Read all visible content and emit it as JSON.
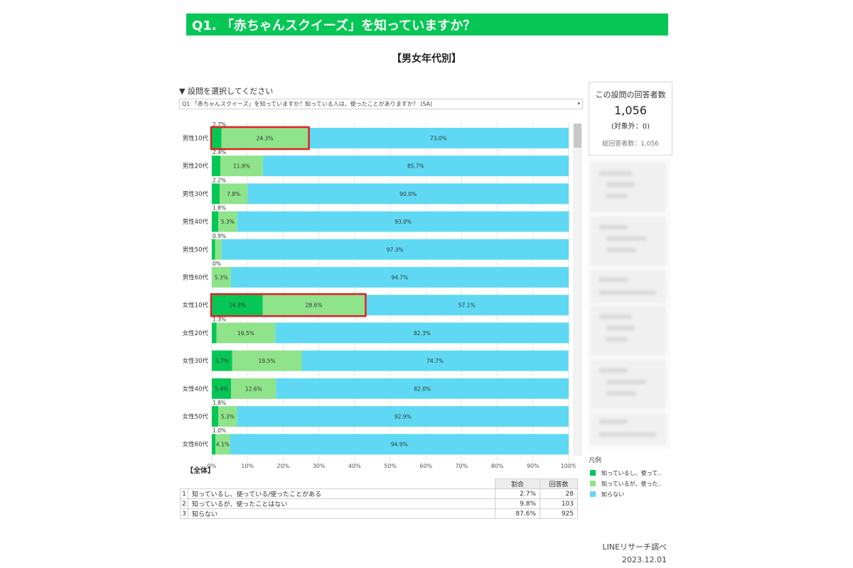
{
  "header": {
    "title": "Q1. 「赤ちゃんスクイーズ」を知っていますか？"
  },
  "subtitle": "【男女年代別】",
  "question_select": {
    "label": "▼ 設問を選択してください",
    "value": "Q1 「赤ちゃんスクイーズ」を知っていますか？知っている人は、使ったことがありますか？ (SA)",
    "arrow": "▾"
  },
  "summary_box": {
    "title": "この設問の回答者数",
    "count": "1,056",
    "excluded": "(対象外：0)",
    "total": "総回答者数：1,056"
  },
  "legend": {
    "title": "凡例",
    "items": [
      {
        "label": "知っているし、使って..",
        "color": "#06c755"
      },
      {
        "label": "知っているが、使った..",
        "color": "#8fe38a"
      },
      {
        "label": "知らない",
        "color": "#5fd9f3"
      }
    ]
  },
  "chart_data": {
    "type": "bar",
    "orientation": "horizontal",
    "stacked": true,
    "categories": [
      "男性10代",
      "男性20代",
      "男性30代",
      "男性40代",
      "男性50代",
      "男性60代",
      "女性10代",
      "女性20代",
      "女性30代",
      "女性40代",
      "女性50代",
      "女性60代"
    ],
    "series": [
      {
        "color": "#06c755",
        "values": [
          2.7,
          2.4,
          2.2,
          1.8,
          0.9,
          0.0,
          14.3,
          1.3,
          5.7,
          5.4,
          1.8,
          1.0
        ]
      },
      {
        "color": "#8fe38a",
        "values": [
          24.3,
          11.9,
          7.8,
          5.3,
          1.8,
          5.3,
          28.6,
          16.5,
          19.5,
          12.6,
          5.3,
          4.1
        ]
      },
      {
        "color": "#5fd9f3",
        "values": [
          73.0,
          85.7,
          90.0,
          93.0,
          97.3,
          94.7,
          57.1,
          82.3,
          74.7,
          82.0,
          92.9,
          94.9
        ]
      }
    ],
    "labels": [
      [
        "2.7%",
        "24.3%",
        "73.0%"
      ],
      [
        "2.4%",
        "11.9%",
        "85.7%"
      ],
      [
        "2.2%",
        "7.8%",
        "90.0%"
      ],
      [
        "1.8%",
        "5.3%",
        "93.0%"
      ],
      [
        "0.9%",
        "",
        "97.3%"
      ],
      [
        "0%",
        "5.3%",
        "94.7%"
      ],
      [
        "14.3%",
        "28.6%",
        "57.1%"
      ],
      [
        "1.3%",
        "16.5%",
        "82.3%"
      ],
      [
        "5.7%",
        "19.5%",
        "74.7%"
      ],
      [
        "5.4%",
        "12.6%",
        "82.0%"
      ],
      [
        "1.8%",
        "5.3%",
        "92.9%"
      ],
      [
        "1.0%",
        "4.1%",
        "94.9%"
      ]
    ],
    "xticks": [
      "0%",
      "10%",
      "20%",
      "30%",
      "40%",
      "50%",
      "60%",
      "70%",
      "80%",
      "90%",
      "100%"
    ],
    "xlim": [
      0,
      100
    ],
    "grid": true,
    "highlighted_categories": [
      "男性10代",
      "女性10代"
    ]
  },
  "overall": {
    "label": "【全体】",
    "headers": [
      "割合",
      "回答数"
    ],
    "rows": [
      {
        "index": "1",
        "label": "知っているし、使っている/使ったことがある",
        "ratio": "2.7%",
        "count": "28"
      },
      {
        "index": "2",
        "label": "知っているが、使ったことはない",
        "ratio": "9.8%",
        "count": "103"
      },
      {
        "index": "3",
        "label": "知らない",
        "ratio": "87.6%",
        "count": "925"
      }
    ]
  },
  "footer": {
    "source": "LINEリサーチ調べ",
    "date": "2023.12.01"
  }
}
